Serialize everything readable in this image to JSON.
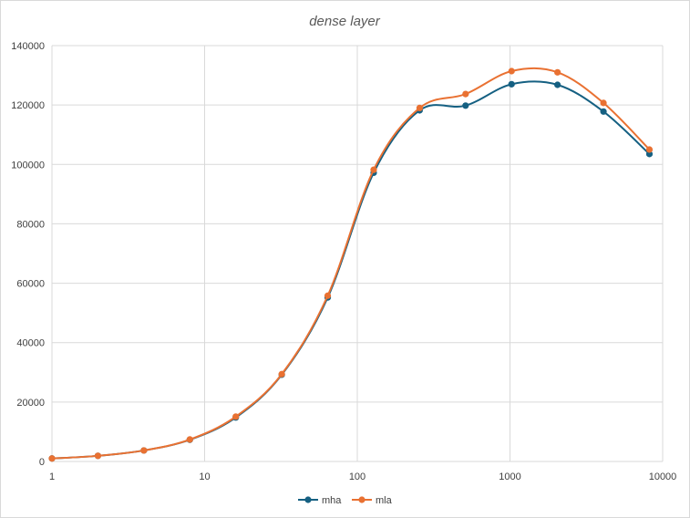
{
  "chart_data": {
    "type": "line",
    "title": "dense layer",
    "xlabel": "",
    "ylabel": "",
    "x_scale": "log",
    "xlim": [
      1,
      10000
    ],
    "ylim": [
      0,
      140000
    ],
    "x_ticks": [
      "1",
      "10",
      "100",
      "1000",
      "10000"
    ],
    "y_ticks": [
      "0",
      "20000",
      "40000",
      "60000",
      "80000",
      "100000",
      "120000",
      "140000"
    ],
    "grid": true,
    "legend_position": "bottom",
    "x": [
      1,
      2,
      4,
      8,
      16,
      32,
      64,
      128,
      256,
      512,
      1024,
      2048,
      4096,
      8192
    ],
    "series": [
      {
        "name": "mha",
        "color": "#156082",
        "values": [
          1000,
          1900,
          3700,
          7300,
          14800,
          29200,
          55200,
          97200,
          118200,
          119800,
          127000,
          126800,
          117800,
          103500
        ]
      },
      {
        "name": "mla",
        "color": "#E97132",
        "values": [
          1000,
          1900,
          3700,
          7400,
          15100,
          29400,
          55800,
          98200,
          119000,
          123700,
          131400,
          131000,
          120700,
          105000
        ]
      }
    ]
  }
}
